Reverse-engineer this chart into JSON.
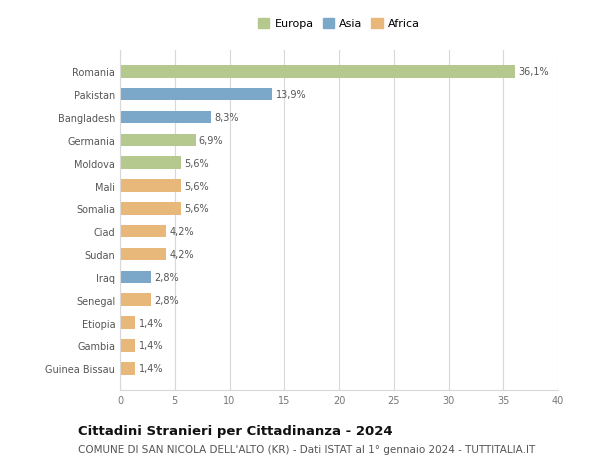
{
  "countries": [
    "Romania",
    "Pakistan",
    "Bangladesh",
    "Germania",
    "Moldova",
    "Mali",
    "Somalia",
    "Ciad",
    "Sudan",
    "Iraq",
    "Senegal",
    "Etiopia",
    "Gambia",
    "Guinea Bissau"
  ],
  "values": [
    36.1,
    13.9,
    8.3,
    6.9,
    5.6,
    5.6,
    5.6,
    4.2,
    4.2,
    2.8,
    2.8,
    1.4,
    1.4,
    1.4
  ],
  "labels": [
    "36,1%",
    "13,9%",
    "8,3%",
    "6,9%",
    "5,6%",
    "5,6%",
    "5,6%",
    "4,2%",
    "4,2%",
    "2,8%",
    "2,8%",
    "1,4%",
    "1,4%",
    "1,4%"
  ],
  "continents": [
    "Europa",
    "Asia",
    "Asia",
    "Europa",
    "Europa",
    "Africa",
    "Africa",
    "Africa",
    "Africa",
    "Asia",
    "Africa",
    "Africa",
    "Africa",
    "Africa"
  ],
  "colors": {
    "Europa": "#b5c98e",
    "Asia": "#7ba7c9",
    "Africa": "#e8b87a"
  },
  "xlim": [
    0,
    40
  ],
  "xticks": [
    0,
    5,
    10,
    15,
    20,
    25,
    30,
    35,
    40
  ],
  "title": "Cittadini Stranieri per Cittadinanza - 2024",
  "subtitle": "COMUNE DI SAN NICOLA DELL'ALTO (KR) - Dati ISTAT al 1° gennaio 2024 - TUTTITALIA.IT",
  "background_color": "#ffffff",
  "plot_background": "#ffffff",
  "grid_color": "#d8d8d8",
  "title_fontsize": 9.5,
  "subtitle_fontsize": 7.5,
  "label_fontsize": 7,
  "tick_fontsize": 7,
  "legend_fontsize": 8,
  "bar_height": 0.55
}
